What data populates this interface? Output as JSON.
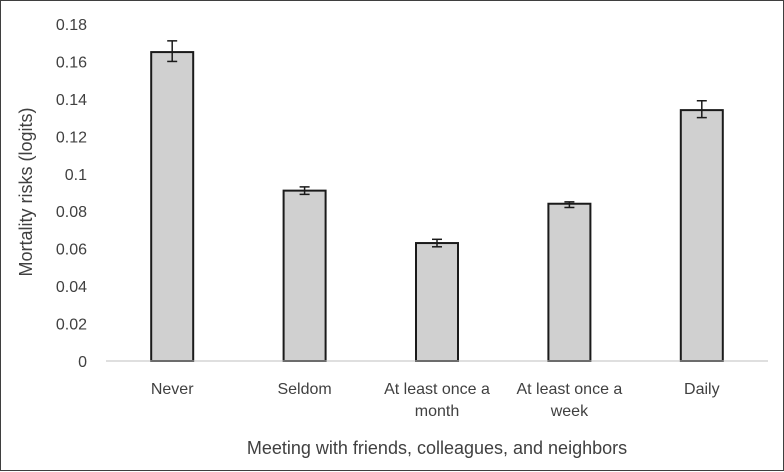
{
  "chart_data": {
    "type": "bar",
    "title": "",
    "xlabel": "Meeting with friends, colleagues, and neighbors",
    "ylabel": "Mortality risks (logits)",
    "categories": [
      [
        "Never"
      ],
      [
        "Seldom"
      ],
      [
        "At least once a",
        "month"
      ],
      [
        "At least once a",
        "week"
      ],
      [
        "Daily"
      ]
    ],
    "values": [
      0.165,
      0.091,
      0.063,
      0.084,
      0.134
    ],
    "error_low": [
      0.16,
      0.089,
      0.061,
      0.082,
      0.13
    ],
    "error_high": [
      0.171,
      0.093,
      0.065,
      0.085,
      0.139
    ],
    "ylim": [
      0,
      0.18
    ],
    "yticks": [
      "0",
      "0.02",
      "0.04",
      "0.06",
      "0.08",
      "0.1",
      "0.12",
      "0.14",
      "0.16",
      "0.18"
    ],
    "ytick_values": [
      0,
      0.02,
      0.04,
      0.06,
      0.08,
      0.1,
      0.12,
      0.14,
      0.16,
      0.18
    ],
    "grid": false,
    "legend": "none",
    "colors": {
      "bar_fill": "#d0d0d0",
      "bar_stroke": "#1a1a1a",
      "axis": "#bfbfbf",
      "text": "#404040"
    }
  }
}
